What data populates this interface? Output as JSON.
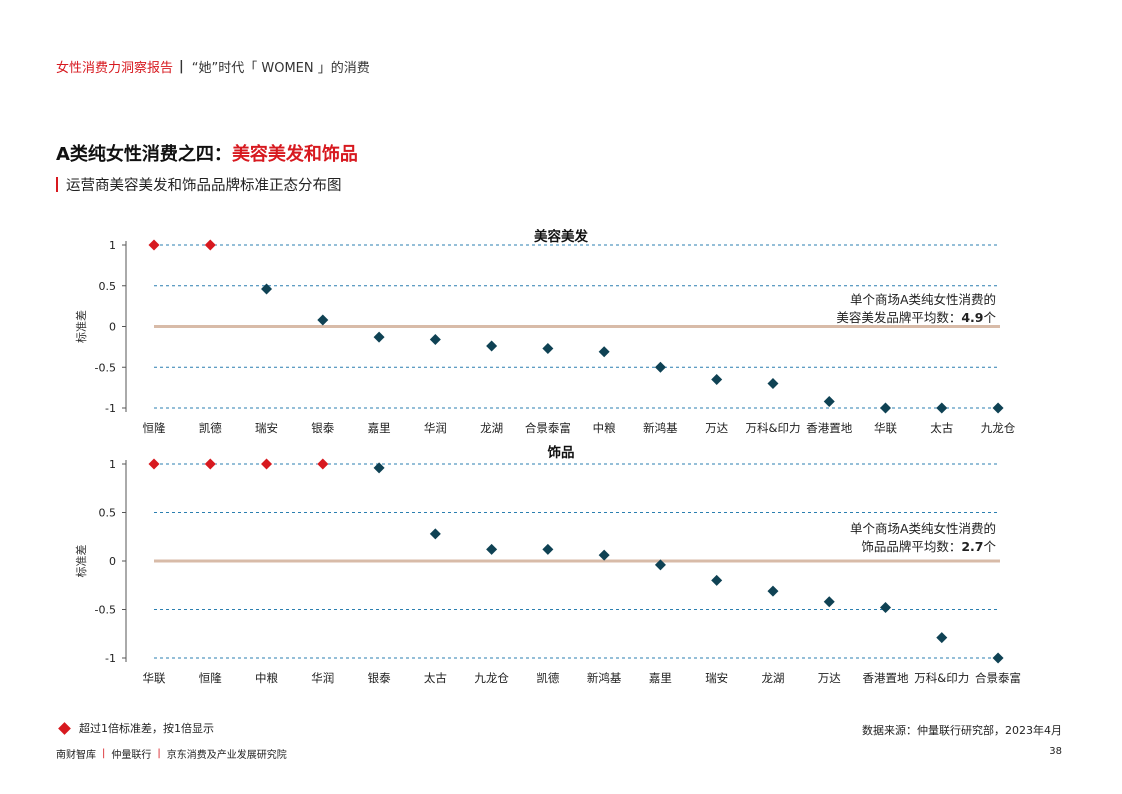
{
  "header": {
    "report": "女性消费力洞察报告",
    "separator": "|",
    "subtitle": "“她”时代「 WOMEN 」的消费"
  },
  "title": {
    "prefix": "A类纯女性消费之四：",
    "highlight": "美容美发和饰品"
  },
  "subtitle": "运营商美容美发和饰品品牌标准正态分布图",
  "colors": {
    "accent": "#d7191f",
    "point": "#0f4254",
    "baseline": "#d8bba8",
    "grid": "#2b7fb0"
  },
  "chart_data": [
    {
      "type": "scatter",
      "title": "美容美发",
      "ylabel": "标准差",
      "ylim": [
        -1,
        1
      ],
      "yticks": [
        "1",
        "0.5",
        "0",
        "-0.5",
        "-1"
      ],
      "grid": true,
      "categories": [
        "恒隆",
        "凯德",
        "瑞安",
        "银泰",
        "嘉里",
        "华润",
        "龙湖",
        "合景泰富",
        "中粮",
        "新鸿基",
        "万达",
        "万科&印力",
        "香港置地",
        "华联",
        "太古",
        "九龙仓"
      ],
      "values": [
        1,
        1,
        0.46,
        0.08,
        -0.13,
        -0.16,
        -0.24,
        -0.27,
        -0.31,
        -0.5,
        -0.65,
        -0.7,
        -0.92,
        -1,
        -1,
        -1
      ],
      "capped": [
        true,
        true,
        false,
        false,
        false,
        false,
        false,
        false,
        false,
        false,
        false,
        false,
        false,
        false,
        false,
        false
      ],
      "annotation": {
        "line1": "单个商场A类纯女性消费的",
        "line2": "美容美发品牌平均数：",
        "value": "4.9",
        "unit": "个"
      }
    },
    {
      "type": "scatter",
      "title": "饰品",
      "ylabel": "标准差",
      "ylim": [
        -1,
        1
      ],
      "yticks": [
        "1",
        "0.5",
        "0",
        "-0.5",
        "-1"
      ],
      "grid": true,
      "categories": [
        "华联",
        "恒隆",
        "中粮",
        "华润",
        "银泰",
        "太古",
        "九龙仓",
        "凯德",
        "新鸿基",
        "嘉里",
        "瑞安",
        "龙湖",
        "万达",
        "香港置地",
        "万科&印力",
        "合景泰富"
      ],
      "values": [
        1,
        1,
        1,
        1,
        0.96,
        0.28,
        0.12,
        0.12,
        0.06,
        -0.04,
        -0.2,
        -0.31,
        -0.42,
        -0.48,
        -0.79,
        -1
      ],
      "capped": [
        true,
        true,
        true,
        true,
        false,
        false,
        false,
        false,
        false,
        false,
        false,
        false,
        false,
        false,
        false,
        false
      ],
      "annotation": {
        "line1": "单个商场A类纯女性消费的",
        "line2": "饰品品牌平均数：",
        "value": "2.7",
        "unit": "个"
      }
    }
  ],
  "legend": {
    "label": "超过1倍标准差，按1倍显示"
  },
  "source": "数据来源：仲量联行研究部，2023年4月",
  "footer": {
    "items": [
      "南财智库",
      "仲量联行",
      "京东消费及产业发展研究院"
    ],
    "separator": "|"
  },
  "page_number": "38"
}
